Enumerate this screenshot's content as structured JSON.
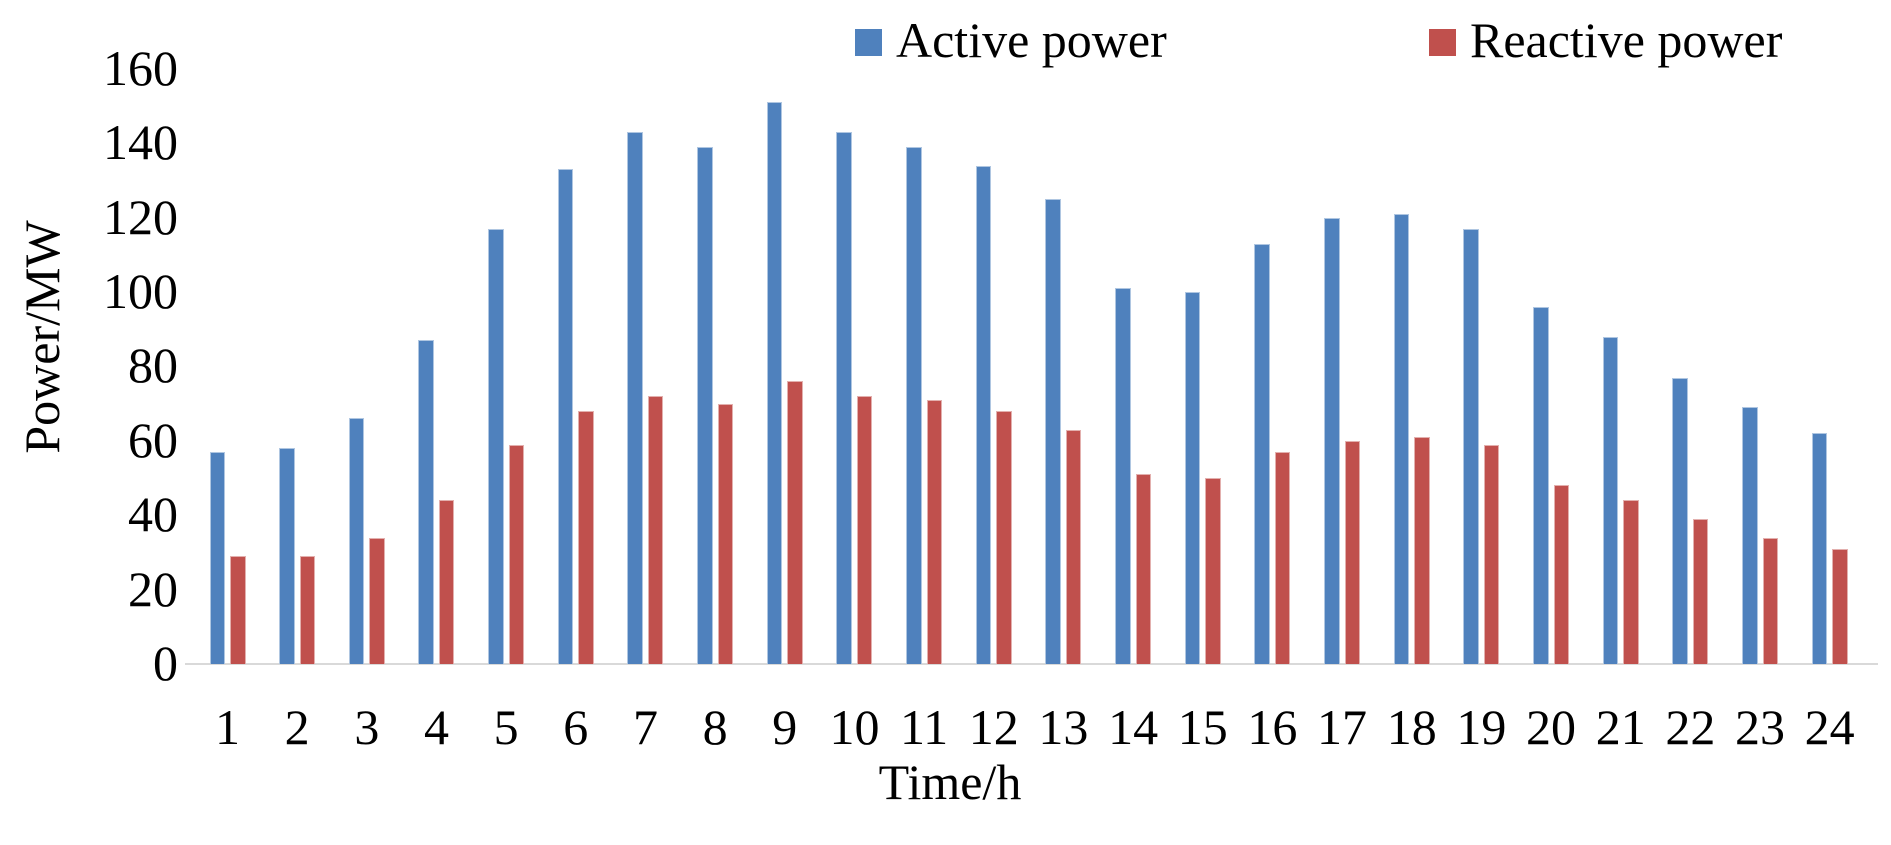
{
  "chart_data": {
    "type": "bar",
    "title": "",
    "categories": [
      "1",
      "2",
      "3",
      "4",
      "5",
      "6",
      "7",
      "8",
      "9",
      "10",
      "11",
      "12",
      "13",
      "14",
      "15",
      "16",
      "17",
      "18",
      "19",
      "20",
      "21",
      "22",
      "23",
      "24"
    ],
    "series": [
      {
        "name": "Active power",
        "color": "#4F81BD",
        "values": [
          57,
          58,
          66,
          87,
          117,
          133,
          143,
          139,
          151,
          143,
          139,
          134,
          125,
          101,
          100,
          113,
          120,
          121,
          117,
          96,
          88,
          77,
          69,
          62
        ]
      },
      {
        "name": "Reactive power",
        "color": "#C0504D",
        "values": [
          29,
          29,
          34,
          44,
          59,
          68,
          72,
          70,
          76,
          72,
          71,
          68,
          63,
          51,
          50,
          57,
          60,
          61,
          59,
          48,
          44,
          39,
          34,
          31
        ]
      }
    ],
    "xlabel": "Time/h",
    "ylabel": "Power/MW",
    "ylim": [
      0,
      160
    ],
    "yticks": [
      0,
      20,
      40,
      60,
      80,
      100,
      120,
      140,
      160
    ],
    "grid": false,
    "legend_position": "top-right",
    "axis_line_color": "#d9d9d9",
    "text_color": "#000000"
  }
}
